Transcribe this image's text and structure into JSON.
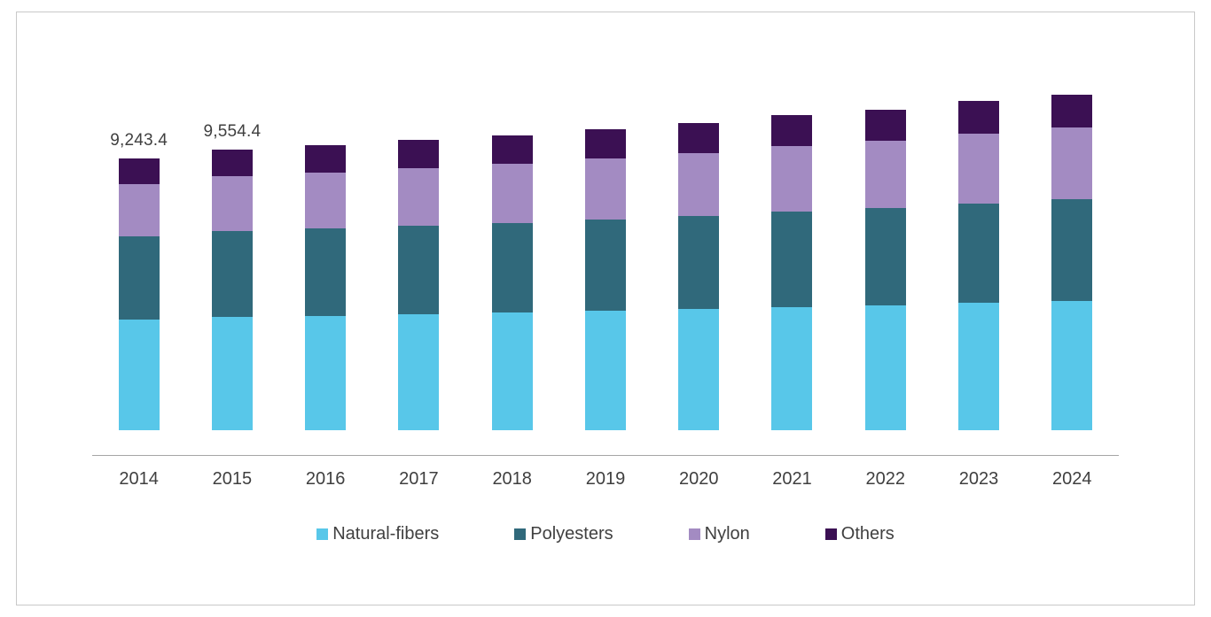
{
  "chart_data": {
    "type": "bar",
    "stacked": true,
    "title": "",
    "xlabel": "",
    "ylabel": "",
    "grid": false,
    "legend_position": "bottom",
    "ylim": [
      0,
      12000
    ],
    "categories": [
      "2014",
      "2015",
      "2016",
      "2017",
      "2018",
      "2019",
      "2020",
      "2021",
      "2022",
      "2023",
      "2024"
    ],
    "series": [
      {
        "name": "Natural-fibers",
        "color": "#58C7E9",
        "values": [
          3765,
          3860,
          3900,
          3950,
          4000,
          4060,
          4120,
          4190,
          4250,
          4330,
          4400
        ]
      },
      {
        "name": "Polyesters",
        "color": "#30697B",
        "values": [
          2830,
          2920,
          2960,
          3010,
          3060,
          3120,
          3180,
          3250,
          3310,
          3390,
          3460
        ]
      },
      {
        "name": "Nylon",
        "color": "#A38BC2",
        "values": [
          1775,
          1860,
          1910,
          1965,
          2010,
          2075,
          2140,
          2220,
          2280,
          2360,
          2430
        ]
      },
      {
        "name": "Others",
        "color": "#3B1053",
        "values": [
          873,
          915,
          930,
          950,
          960,
          985,
          1010,
          1050,
          1070,
          1110,
          1140
        ]
      }
    ],
    "data_labels": [
      "9,243.4",
      "9,554.4",
      "",
      "",
      "",
      "",
      "",
      "",
      "",
      "",
      ""
    ],
    "axis_color": "#a6a6a6",
    "text_color": "#404040"
  }
}
